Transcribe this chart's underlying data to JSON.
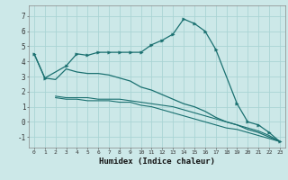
{
  "title": "",
  "xlabel": "Humidex (Indice chaleur)",
  "xlim": [
    -0.5,
    23.5
  ],
  "ylim": [
    -1.7,
    7.7
  ],
  "yticks": [
    -1,
    0,
    1,
    2,
    3,
    4,
    5,
    6,
    7
  ],
  "xticks": [
    0,
    1,
    2,
    3,
    4,
    5,
    6,
    7,
    8,
    9,
    10,
    11,
    12,
    13,
    14,
    15,
    16,
    17,
    18,
    19,
    20,
    21,
    22,
    23
  ],
  "bg_color": "#cce8e8",
  "grid_color": "#aad4d4",
  "line_color": "#1a7070",
  "line1_x": [
    0,
    1,
    3,
    4,
    5,
    6,
    7,
    8,
    9,
    10,
    11,
    12,
    13,
    14,
    15,
    16,
    17,
    19,
    20,
    21,
    22,
    23
  ],
  "line1_y": [
    4.5,
    2.9,
    3.7,
    4.5,
    4.4,
    4.6,
    4.6,
    4.6,
    4.6,
    4.6,
    5.1,
    5.4,
    5.8,
    6.8,
    6.5,
    6.0,
    4.8,
    1.2,
    0.0,
    -0.2,
    -0.7,
    -1.3
  ],
  "line2_x": [
    0,
    1,
    2,
    3,
    4,
    5,
    6,
    7,
    8,
    9,
    10,
    11,
    12,
    13,
    14,
    15,
    16,
    17,
    18,
    19,
    20,
    21,
    22,
    23
  ],
  "line2_y": [
    4.5,
    2.9,
    2.8,
    3.5,
    3.3,
    3.2,
    3.2,
    3.1,
    2.9,
    2.7,
    2.3,
    2.1,
    1.8,
    1.5,
    1.2,
    1.0,
    0.7,
    0.3,
    0.0,
    -0.2,
    -0.5,
    -0.7,
    -1.0,
    -1.3
  ],
  "line3_x": [
    2,
    3,
    4,
    5,
    6,
    7,
    8,
    9,
    10,
    11,
    12,
    13,
    14,
    15,
    16,
    17,
    18,
    19,
    20,
    21,
    22,
    23
  ],
  "line3_y": [
    1.7,
    1.6,
    1.6,
    1.6,
    1.5,
    1.5,
    1.5,
    1.4,
    1.3,
    1.2,
    1.1,
    1.0,
    0.8,
    0.6,
    0.4,
    0.2,
    0.0,
    -0.2,
    -0.4,
    -0.6,
    -0.9,
    -1.3
  ],
  "line4_x": [
    2,
    3,
    4,
    5,
    6,
    7,
    8,
    9,
    10,
    11,
    12,
    13,
    14,
    15,
    16,
    17,
    18,
    19,
    20,
    21,
    22,
    23
  ],
  "line4_y": [
    1.6,
    1.5,
    1.5,
    1.4,
    1.4,
    1.4,
    1.3,
    1.3,
    1.1,
    1.0,
    0.8,
    0.6,
    0.4,
    0.2,
    0.0,
    -0.2,
    -0.4,
    -0.5,
    -0.7,
    -0.9,
    -1.1,
    -1.3
  ]
}
